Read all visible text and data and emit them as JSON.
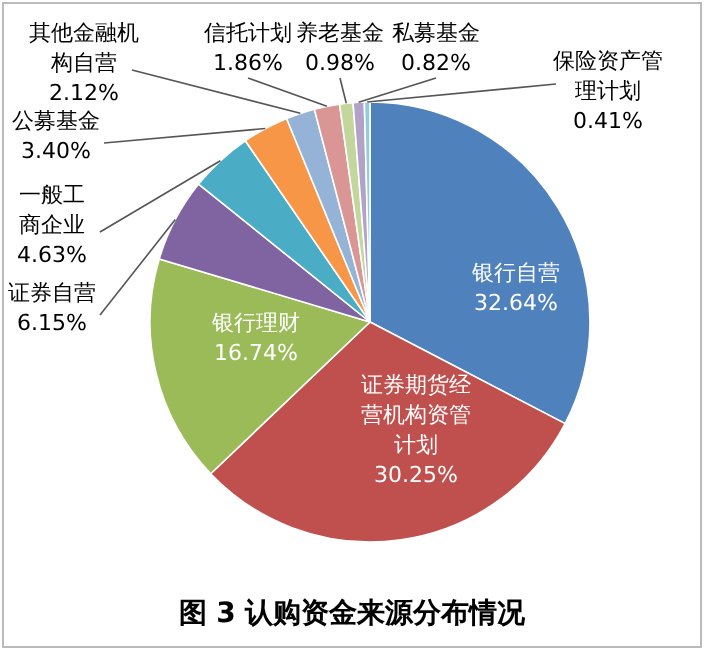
{
  "chart_data": {
    "type": "pie",
    "title": "图 3 认购资金来源分布情况",
    "categories": [
      "银行自营",
      "证券期货经营机构资管计划",
      "银行理财",
      "证券自营",
      "一般工商企业",
      "公募基金",
      "其他金融机构自营",
      "信托计划",
      "养老基金",
      "私募基金",
      "保险资产管理计划"
    ],
    "values": [
      32.64,
      30.25,
      16.74,
      6.15,
      4.63,
      3.4,
      2.12,
      1.86,
      0.98,
      0.82,
      0.41
    ],
    "value_labels": [
      "32.64%",
      "30.25%",
      "16.74%",
      "6.15%",
      "4.63%",
      "3.40%",
      "2.12%",
      "1.86%",
      "0.98%",
      "0.82%",
      "0.41%"
    ],
    "colors": [
      "#4f81bd",
      "#c0504d",
      "#9bbb59",
      "#8064a2",
      "#4bacc6",
      "#f79646",
      "#95b3d7",
      "#d99694",
      "#c3d69b",
      "#b3a2c7",
      "#93cddd"
    ]
  }
}
